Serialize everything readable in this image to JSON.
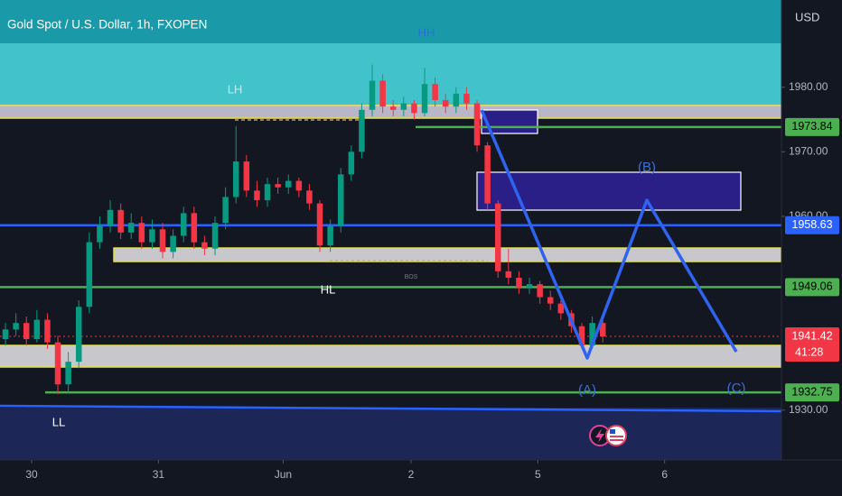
{
  "chart_data": {
    "type": "candlestick",
    "title": "Gold Spot / U.S. Dollar, 1h, FXOPEN",
    "currency": "USD",
    "up_color": "#089981",
    "down_color": "#f23645",
    "open": [
      1941.0,
      1942.5,
      1943.5,
      1941.0,
      1944.0,
      1940.5,
      1934.0,
      1937.5,
      1946.0,
      1956.0,
      1958.5,
      1961.0,
      1957.5,
      1959.0,
      1956.0,
      1958.0,
      1954.5,
      1957.0,
      1960.5,
      1956.0,
      1955.0,
      1959.0,
      1963.0,
      1968.5,
      1964.0,
      1962.5,
      1965.0,
      1964.5,
      1965.5,
      1964.0,
      1962.0,
      1955.5,
      1958.5,
      1966.5,
      1970.0,
      1976.5,
      1981.0,
      1977.0,
      1976.5,
      1977.5,
      1976.0,
      1980.5,
      1978.0,
      1977.0,
      1979.0,
      1977.5,
      1971.0,
      1962.0,
      1951.5,
      1950.5,
      1949.0,
      1949.5,
      1947.5,
      1946.5,
      1945.0,
      1943.0,
      1940.0,
      1943.5
    ],
    "high": [
      1943.5,
      1945.0,
      1944.5,
      1945.5,
      1945.0,
      1941.5,
      1939.0,
      1947.0,
      1957.5,
      1960.0,
      1962.5,
      1962.0,
      1960.5,
      1960.0,
      1959.5,
      1959.0,
      1958.0,
      1961.5,
      1961.5,
      1957.0,
      1960.0,
      1964.5,
      1974.0,
      1969.5,
      1965.5,
      1966.0,
      1966.0,
      1966.5,
      1966.0,
      1965.0,
      1962.5,
      1959.5,
      1967.5,
      1971.0,
      1977.5,
      1983.5,
      1982.0,
      1978.0,
      1978.5,
      1978.0,
      1983.0,
      1981.5,
      1979.0,
      1980.0,
      1980.0,
      1978.0,
      1971.5,
      1962.5,
      1955.0,
      1951.5,
      1950.5,
      1950.0,
      1948.5,
      1947.0,
      1945.5,
      1943.5,
      1944.5,
      1944.0
    ],
    "low": [
      1940.0,
      1941.5,
      1940.0,
      1940.5,
      1939.5,
      1932.5,
      1932.8,
      1936.5,
      1945.0,
      1955.0,
      1957.5,
      1956.5,
      1956.5,
      1955.0,
      1955.0,
      1953.5,
      1953.5,
      1956.0,
      1955.0,
      1954.0,
      1954.0,
      1958.0,
      1962.0,
      1963.0,
      1961.5,
      1961.5,
      1963.5,
      1963.5,
      1963.0,
      1961.0,
      1954.5,
      1954.5,
      1957.5,
      1965.5,
      1969.0,
      1975.5,
      1976.0,
      1975.5,
      1975.5,
      1975.0,
      1975.5,
      1977.0,
      1976.0,
      1976.0,
      1976.5,
      1970.0,
      1961.0,
      1950.5,
      1949.5,
      1948.0,
      1948.0,
      1946.5,
      1945.5,
      1944.0,
      1942.0,
      1939.5,
      1939.5,
      1940.5
    ],
    "close": [
      1942.5,
      1943.5,
      1941.0,
      1944.0,
      1940.5,
      1934.0,
      1937.5,
      1946.0,
      1956.0,
      1958.5,
      1961.0,
      1957.5,
      1959.0,
      1956.0,
      1958.0,
      1954.5,
      1957.0,
      1960.5,
      1956.0,
      1955.0,
      1959.0,
      1963.0,
      1968.5,
      1964.0,
      1962.5,
      1965.0,
      1964.5,
      1965.5,
      1964.0,
      1962.0,
      1955.5,
      1958.5,
      1966.5,
      1970.0,
      1976.5,
      1981.0,
      1977.0,
      1976.5,
      1977.5,
      1976.0,
      1980.5,
      1978.0,
      1977.0,
      1979.0,
      1977.5,
      1971.0,
      1962.0,
      1951.5,
      1950.5,
      1949.0,
      1949.5,
      1947.5,
      1946.5,
      1945.0,
      1943.0,
      1940.0,
      1943.5,
      1941.42
    ],
    "xlim": [
      -0.52,
      74.05
    ],
    "xticks": [
      {
        "value": 2.5,
        "label": "30"
      },
      {
        "value": 14.6,
        "label": "31"
      },
      {
        "value": 26.5,
        "label": "Jun"
      },
      {
        "value": 38.7,
        "label": "2"
      },
      {
        "value": 50.8,
        "label": "5"
      },
      {
        "value": 62.9,
        "label": "6"
      }
    ],
    "ylim": [
      1922.3,
      1993.5
    ],
    "yticks": [
      {
        "value": 1930,
        "label": "1930.00"
      },
      {
        "value": 1960,
        "label": "1960.00"
      },
      {
        "value": 1970,
        "label": "1970.00"
      },
      {
        "value": 1980,
        "label": "1980.00"
      }
    ],
    "levels": [
      {
        "value": 1973.84,
        "color": "#4caf50"
      },
      {
        "value": 1958.63,
        "color": "#2962ff"
      },
      {
        "value": 1949.06,
        "color": "#4caf50"
      },
      {
        "value": 1941.42,
        "color": "#f23645"
      },
      {
        "value": 1932.75,
        "color": "#4caf50"
      }
    ],
    "countdown": "41:28",
    "annotations": [
      "HH",
      "LH",
      "HL",
      "LL",
      "BOS",
      "(A)",
      "(B)",
      "(C)"
    ]
  }
}
